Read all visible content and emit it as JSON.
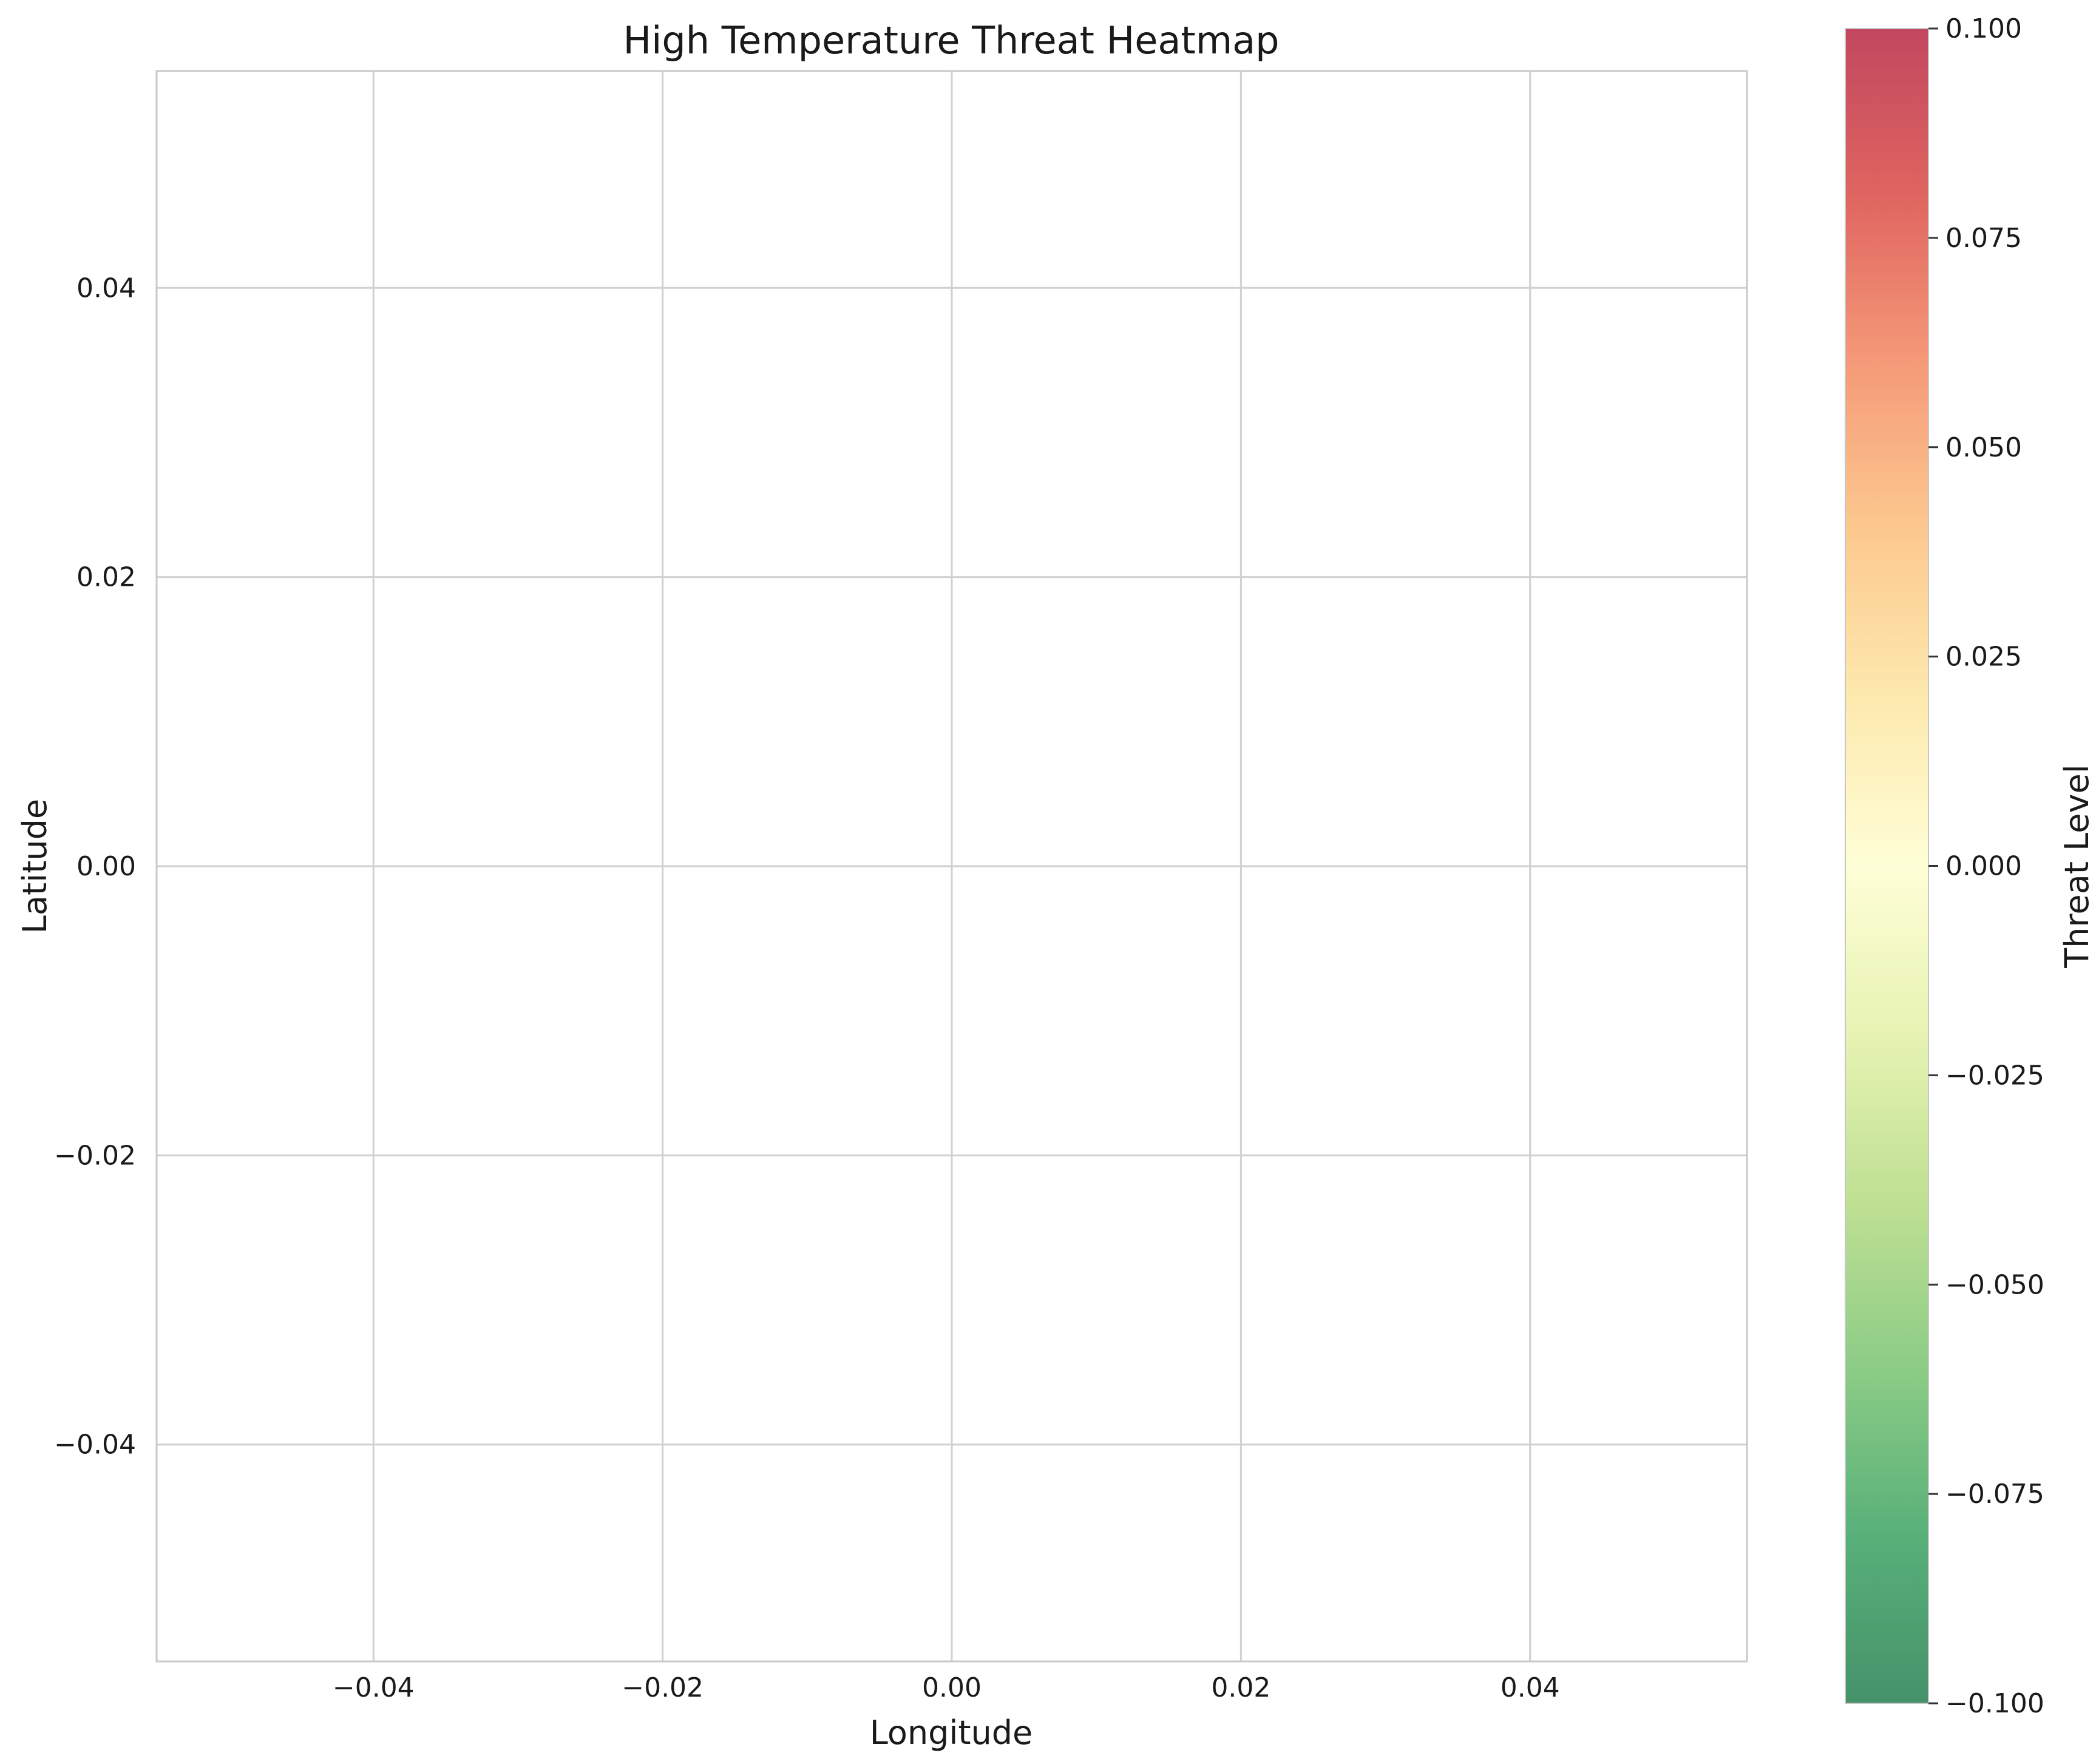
{
  "chart_data": {
    "type": "heatmap",
    "title": "High Temperature Threat Heatmap",
    "xlabel": "Longitude",
    "ylabel": "Latitude",
    "xlim": [
      -0.055,
      0.055
    ],
    "ylim": [
      -0.055,
      0.055
    ],
    "xticks": [
      -0.04,
      -0.02,
      0.0,
      0.02,
      0.04
    ],
    "xtick_labels": [
      "−0.04",
      "−0.02",
      "0.00",
      "0.02",
      "0.04"
    ],
    "yticks": [
      0.04,
      0.02,
      0.0,
      -0.02,
      -0.04
    ],
    "ytick_labels": [
      "0.04",
      "0.02",
      "0.00",
      "−0.02",
      "−0.04"
    ],
    "grid": true,
    "points": [],
    "colorbar": {
      "label": "Threat Level",
      "range": [
        -0.1,
        0.1
      ],
      "ticks": [
        0.1,
        0.075,
        0.05,
        0.025,
        0.0,
        -0.025,
        -0.05,
        -0.075,
        -0.1
      ],
      "tick_labels": [
        "0.100",
        "0.075",
        "0.050",
        "0.025",
        "0.000",
        "−0.025",
        "−0.050",
        "−0.075",
        "−0.100"
      ],
      "colormap_stops": [
        "#c2475f",
        "#df6560",
        "#f59a78",
        "#fcc98f",
        "#fde9ae",
        "#fefed6",
        "#e7f3b3",
        "#bfe093",
        "#8ccc86",
        "#58b079",
        "#45926a"
      ]
    },
    "colors": {
      "grid": "#d0d0d0",
      "spine": "#c8c8c8",
      "tick": "#333333"
    }
  }
}
